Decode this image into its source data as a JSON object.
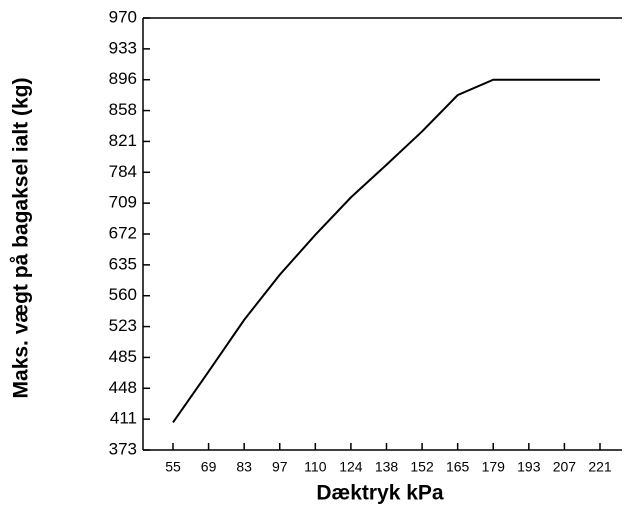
{
  "chart_data": {
    "type": "line",
    "x_label": "Dæktryk kPa",
    "y_label": "Maks. vægt på bagaksel ialt (kg)",
    "categories": [
      "55",
      "69",
      "83",
      "97",
      "110",
      "124",
      "138",
      "152",
      "165",
      "179",
      "193",
      "207",
      "221"
    ],
    "series": [
      {
        "name": "Maks. vægt",
        "color": "#000000",
        "values": [
          407,
          468,
          531,
          611,
          671,
          723,
          793,
          833,
          877,
          896,
          896,
          896,
          896
        ]
      }
    ],
    "ylim": [
      373,
      970
    ],
    "yticks": [
      373,
      411,
      448,
      485,
      523,
      560,
      635,
      672,
      709,
      784,
      821,
      858,
      896,
      933,
      970
    ]
  }
}
